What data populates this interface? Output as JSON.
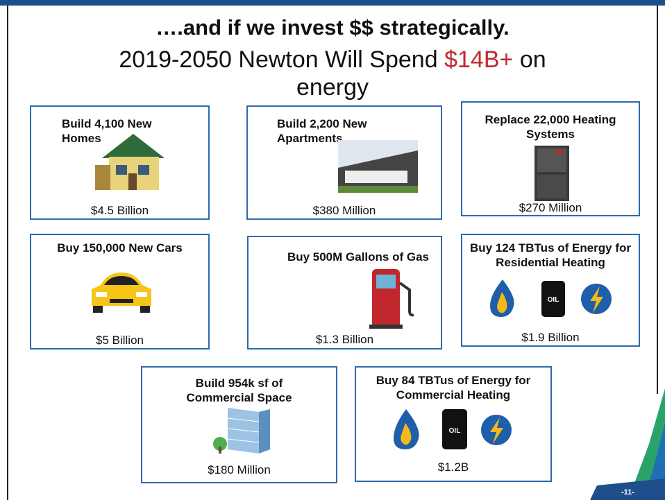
{
  "header": {
    "title": "….and if we invest $$ strategically.",
    "subtitle": [
      "2019-2050 Newton Will Spend",
      "$14B+",
      "on energy"
    ]
  },
  "boxes": [
    {
      "title": "Build 4,100 New Homes",
      "amount": "$4.5 Billion"
    },
    {
      "title": "Build 2,200 New Apartments",
      "amount": "$380 Million"
    },
    {
      "title": "Replace 22,000 Heating Systems",
      "amount": "$270 Million"
    },
    {
      "title": "Buy 150,000 New Cars",
      "amount": "$5 Billion"
    },
    {
      "title": "Buy 500M Gallons of Gas",
      "amount": "$1.3 Billion"
    },
    {
      "title": "Buy 124 TBTus of Energy for Residential Heating",
      "amount": "$1.9 Billion",
      "icon_text": "OIL"
    },
    {
      "title": "Build 954k sf of Commercial Space",
      "amount": "$180 Million"
    },
    {
      "title": "Buy 84 TBTus of Energy for Commercial Heating",
      "amount": "$1.2B",
      "icon_text": "OIL"
    }
  ],
  "page_number": "-11-"
}
